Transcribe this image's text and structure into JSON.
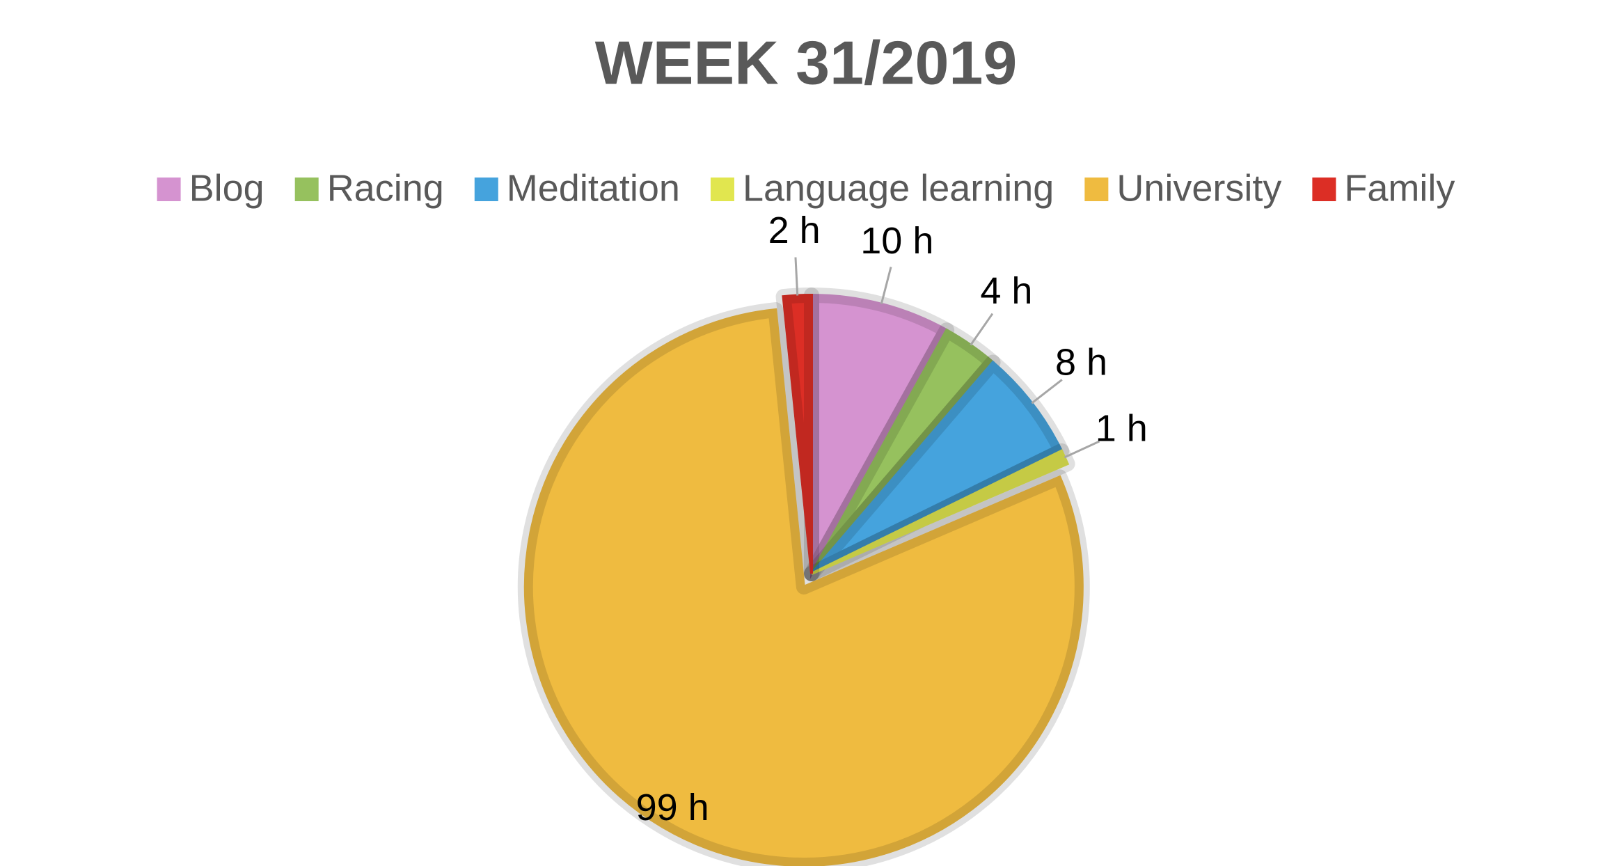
{
  "chart_data": {
    "type": "pie",
    "title": "WEEK 31/2019",
    "categories": [
      "Blog",
      "Racing",
      "Meditation",
      "Language learning",
      "University",
      "Family"
    ],
    "values": [
      10,
      4,
      8,
      1,
      99,
      2
    ],
    "value_labels": [
      "10 h",
      "4 h",
      "8 h",
      "1 h",
      "99 h",
      "2 h"
    ],
    "colors": [
      "#d593d0",
      "#96c15e",
      "#45a3dd",
      "#e1e64f",
      "#efbb40",
      "#dc2e25"
    ],
    "legend": "top"
  }
}
